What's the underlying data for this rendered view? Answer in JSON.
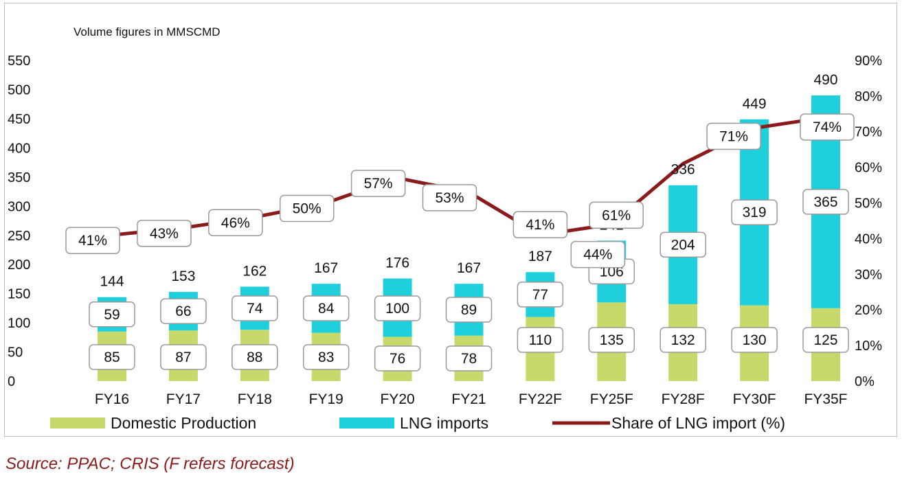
{
  "chart_data": {
    "type": "bar",
    "stacked": true,
    "annotation": "Volume figures in MMSCMD",
    "categories": [
      "FY16",
      "FY17",
      "FY18",
      "FY19",
      "FY20",
      "FY21",
      "FY22F",
      "FY25F",
      "FY28F",
      "FY30F",
      "FY35F"
    ],
    "series": [
      {
        "name": "Domestic Production",
        "kind": "bar",
        "color": "#c6d96a",
        "values": [
          85,
          87,
          88,
          83,
          76,
          78,
          110,
          135,
          132,
          130,
          125
        ]
      },
      {
        "name": "LNG imports",
        "kind": "bar",
        "color": "#1fd0dc",
        "values": [
          59,
          66,
          74,
          84,
          100,
          89,
          77,
          106,
          204,
          319,
          365
        ]
      },
      {
        "name": "Share of LNG import (%)",
        "kind": "line",
        "axis": "right",
        "color": "#8b1a1a",
        "values": [
          41,
          43,
          46,
          50,
          57,
          53,
          41,
          44,
          61,
          71,
          74
        ]
      }
    ],
    "totals": [
      144,
      153,
      162,
      167,
      176,
      167,
      187,
      241,
      336,
      449,
      490
    ],
    "y_left": {
      "ylim": [
        0,
        550
      ],
      "ticks": [
        "0",
        "50",
        "100",
        "150",
        "200",
        "250",
        "300",
        "350",
        "400",
        "450",
        "500",
        "550"
      ]
    },
    "y_right": {
      "ylim": [
        0,
        90
      ],
      "ticks": [
        "0%",
        "10%",
        "20%",
        "30%",
        "40%",
        "50%",
        "60%",
        "70%",
        "80%",
        "90%"
      ]
    },
    "grid": false,
    "legend_position": "bottom"
  },
  "source": "Source: PPAC; CRIS (F refers forecast)"
}
